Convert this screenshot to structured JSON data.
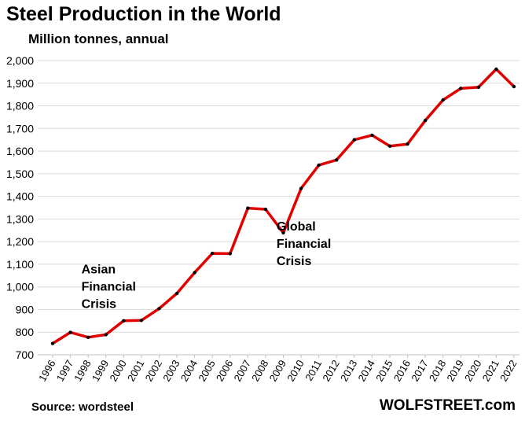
{
  "chart_data": {
    "type": "line",
    "title": "Steel Production  in the World",
    "subtitle": "Million tonnes, annual",
    "source": "Source: wordsteel",
    "brand": "WOLFSTREET.com",
    "xlabel": "",
    "ylabel": "",
    "ylim": [
      700,
      2000
    ],
    "yticks": [
      700,
      800,
      900,
      1000,
      1100,
      1200,
      1300,
      1400,
      1500,
      1600,
      1700,
      1800,
      1900,
      2000
    ],
    "ytick_labels": [
      "700",
      "800",
      "900",
      "1,000",
      "1,100",
      "1,200",
      "1,300",
      "1,400",
      "1,500",
      "1,600",
      "1,700",
      "1,800",
      "1,900",
      "2,000"
    ],
    "grid": "horizontal",
    "line_color": "#e00000",
    "marker_color": "#000000",
    "x": [
      "1996",
      "1997",
      "1998",
      "1999",
      "2000",
      "2001",
      "2002",
      "2003",
      "2004",
      "2005",
      "2006",
      "2007",
      "2008",
      "2009",
      "2010",
      "2011",
      "2012",
      "2013",
      "2014",
      "2015",
      "2016",
      "2017",
      "2018",
      "2019",
      "2020",
      "2021",
      "2022"
    ],
    "series": [
      {
        "values": [
          750,
          799,
          777,
          789,
          850,
          852,
          904,
          971,
          1063,
          1148,
          1147,
          1348,
          1343,
          1239,
          1435,
          1538,
          1561,
          1650,
          1670,
          1622,
          1631,
          1735,
          1826,
          1877,
          1882,
          1962,
          1885
        ]
      }
    ],
    "annotations": [
      {
        "lines": [
          "Asian",
          "Financial",
          "Crisis"
        ],
        "x": "1997",
        "y": 1060
      },
      {
        "lines": [
          "Global",
          "Financial",
          "Crisis"
        ],
        "x": "2008",
        "y": 1250
      }
    ]
  }
}
